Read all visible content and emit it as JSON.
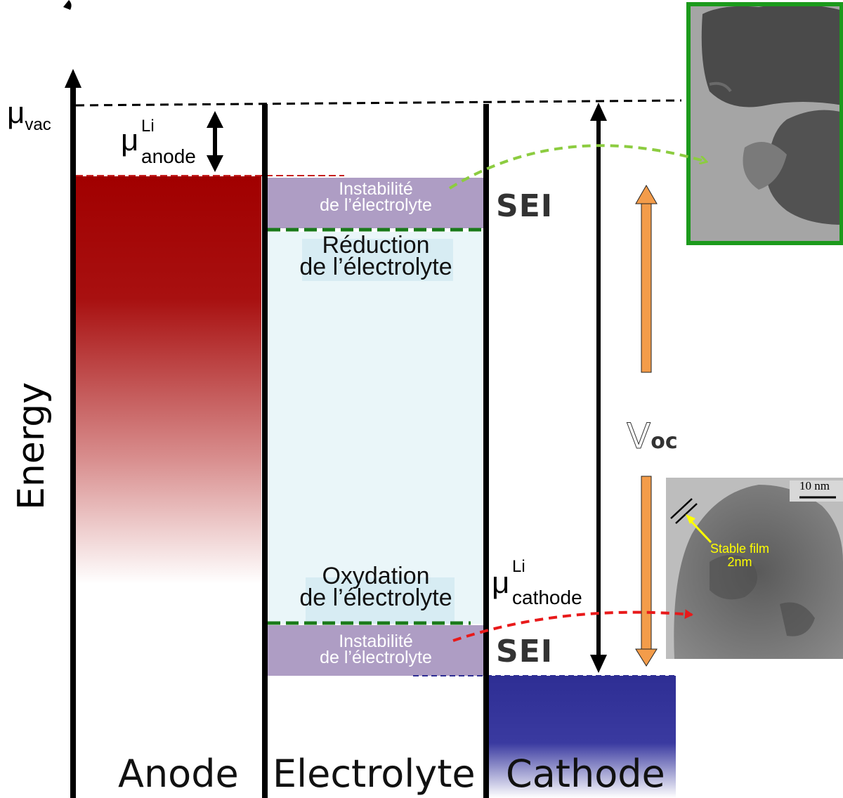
{
  "labels": {
    "mu": "μ",
    "vac": "vac",
    "li": "Li",
    "anode_sub": "anode",
    "cathode_sub": "cathode",
    "energy": "Energy",
    "v": "V",
    "oc": "oc",
    "sei_top": "SEI",
    "sei_bottom": "SEI"
  },
  "columns": {
    "anode": "Anode",
    "electrolyte": "Electrolyte",
    "cathode": "Cathode"
  },
  "electrolyte": {
    "instab_top_line1": "Instabilité",
    "instab_top_line2": "de l’électrolyte",
    "reduction_line1": "Réduction",
    "reduction_line2": "de l’électrolyte",
    "oxidation_line1": "Oxydation",
    "oxidation_line2": "de l’électrolyte",
    "instab_bottom_line1": "Instabilité",
    "instab_bottom_line2": "de l’électrolyte"
  },
  "micrograph": {
    "scale_label": "10 nm",
    "film_line1": "Stable film",
    "film_line2": "2nm"
  },
  "colors": {
    "anode": "#a10000",
    "cathode": "#2e2e94",
    "sei_band": "#ae9dc4",
    "electrolyte_bg": "#eaf6f9",
    "border_green": "#1c9a1c",
    "arrow_green": "#8ccc40",
    "arrow_red": "#e8191a",
    "arrow_orange": "#f39c4a",
    "annotation_yellow": "#ffff00"
  }
}
